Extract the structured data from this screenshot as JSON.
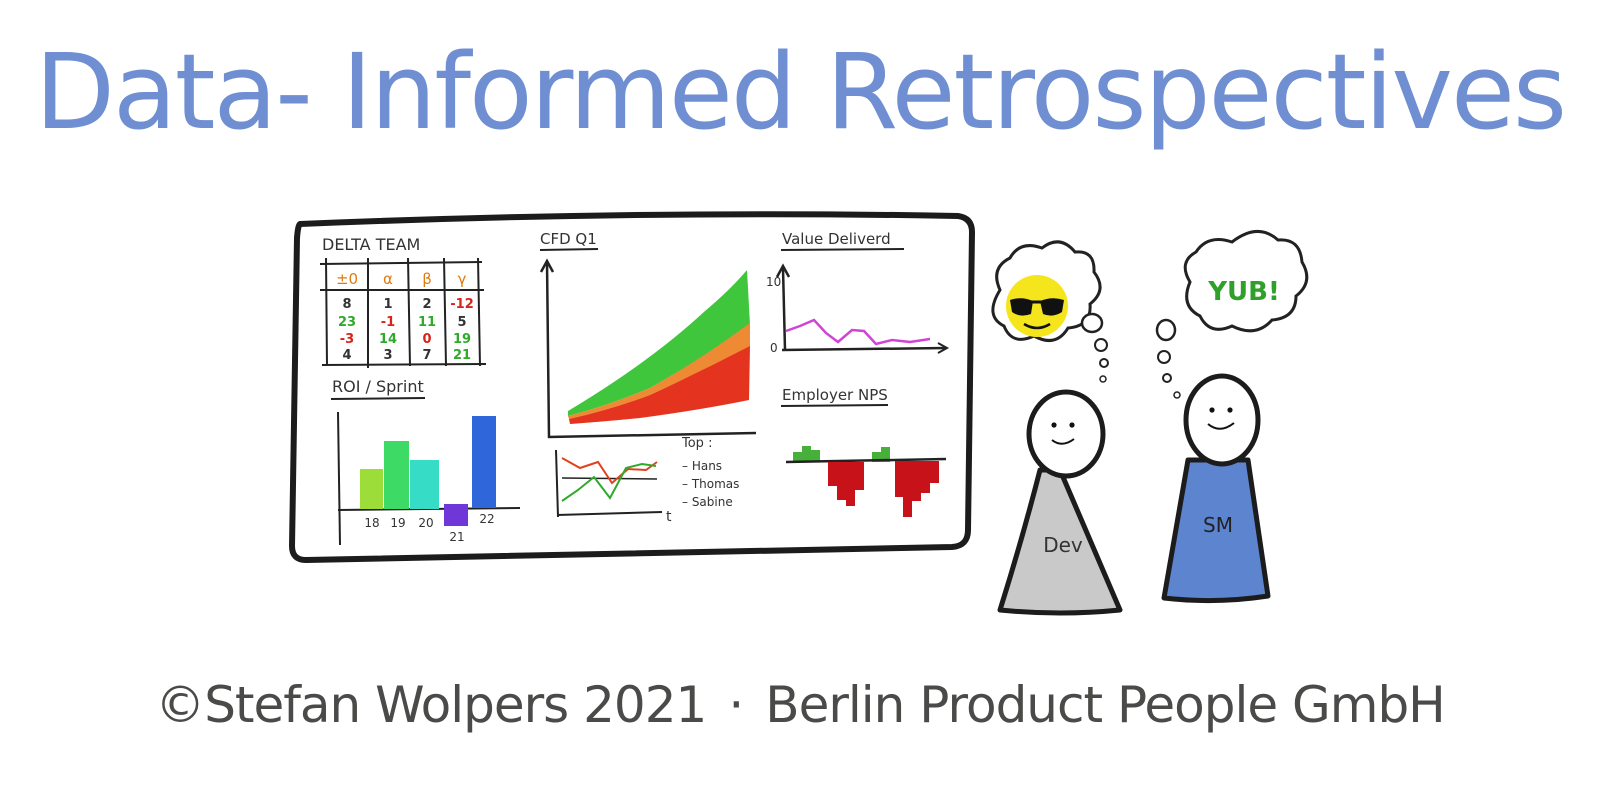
{
  "title": "Data- Informed Retrospectives",
  "footer": {
    "author": "©Stefan Wolpers 2021",
    "separator": "·",
    "company": "Berlin Product People GmbH"
  },
  "board": {
    "delta_team": {
      "title": "DELTA TEAM",
      "headers": [
        "±0",
        "α",
        "β",
        "γ"
      ],
      "rows": [
        [
          "8",
          "1",
          "2",
          "-12"
        ],
        [
          "23",
          "-1",
          "11",
          "5"
        ],
        [
          "-3",
          "14",
          "0",
          "19"
        ],
        [
          "4",
          "3",
          "7",
          "21"
        ]
      ]
    },
    "roi": {
      "title": "ROI / Sprint",
      "labels": [
        "18",
        "19",
        "20",
        "21",
        "22"
      ]
    },
    "cfd": {
      "title": "CFD Q1",
      "top_label": "Top :",
      "axis_t": "t",
      "names": [
        "– Hans",
        "– Thomas",
        "– Sabine"
      ]
    },
    "value": {
      "title": "Value Deliverd",
      "y_max": "10",
      "y_min": "0"
    },
    "nps": {
      "title": "Employer NPS"
    }
  },
  "characters": {
    "dev_label": "Dev",
    "sm_label": "SM",
    "speech": "YUB!"
  },
  "colors": {
    "title": "#6f8fd2",
    "ink": "#2b2b2b",
    "footer": "#4a4a48",
    "green": "#2faa2a",
    "red": "#e02a1a",
    "orange": "#e08020",
    "magenta": "#d043d6",
    "sun": "#f5e51d",
    "dev_body": "#c9c9c9",
    "sm_body": "#5d84cf"
  }
}
